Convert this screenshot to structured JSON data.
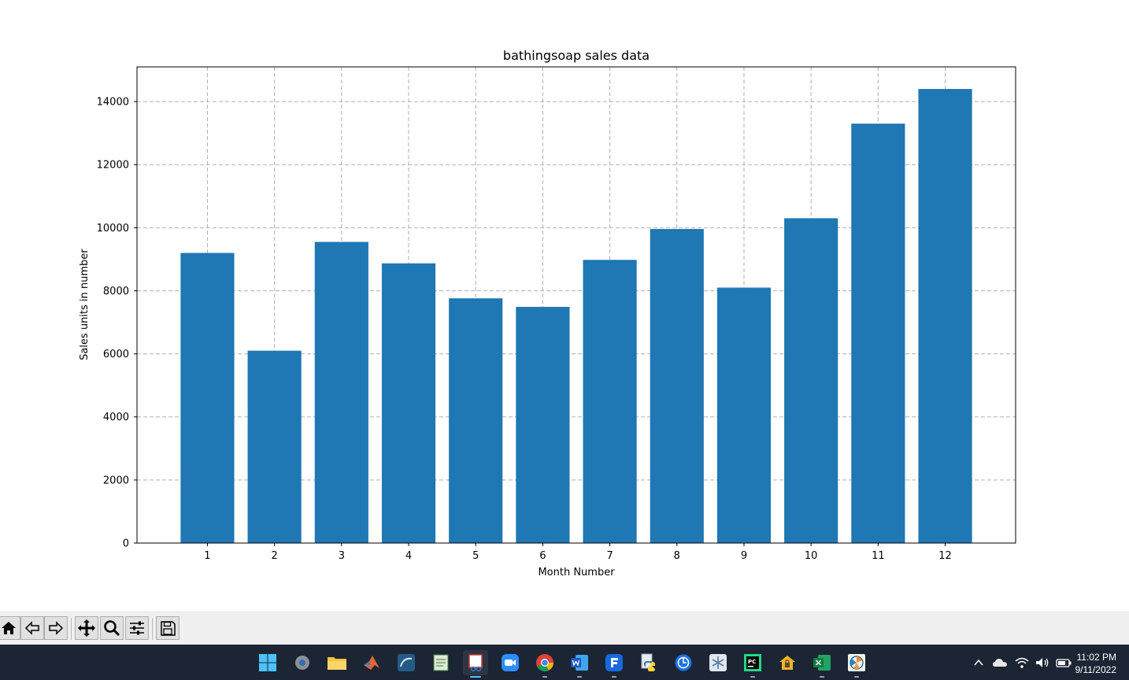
{
  "chart_data": {
    "type": "bar",
    "title": "bathingsoap sales data",
    "xlabel": "Month Number",
    "ylabel": "Sales units in number",
    "categories": [
      "1",
      "2",
      "3",
      "4",
      "5",
      "6",
      "7",
      "8",
      "9",
      "10",
      "11",
      "12"
    ],
    "values": [
      9200,
      6100,
      9550,
      8870,
      7760,
      7490,
      8980,
      9960,
      8100,
      10300,
      13300,
      14400
    ],
    "ylim": [
      0,
      15100
    ],
    "yticks": [
      0,
      2000,
      4000,
      6000,
      8000,
      10000,
      12000,
      14000
    ],
    "grid": true,
    "bar_color": "#1f77b4",
    "grid_color": "#b0b0b0"
  },
  "toolbar": {
    "buttons": [
      "home-icon",
      "back-icon",
      "forward-icon",
      "pan-icon",
      "zoom-icon",
      "configure-icon",
      "save-icon"
    ]
  },
  "taskbar": {
    "apps": [
      "start-icon",
      "settings-icon",
      "file-explorer-icon",
      "matlab-icon",
      "mysql-workbench-icon",
      "notepad-icon",
      "snipping-tool-icon",
      "zoom-app-icon",
      "chrome-icon",
      "word-icon",
      "app-f-icon",
      "python-icon",
      "globe-app-icon",
      "snowflake-app-icon",
      "pycharm-icon",
      "vpn-lock-icon",
      "excel-icon",
      "matplotlib-window-icon"
    ],
    "time": "11:02 PM",
    "date": "9/11/2022"
  }
}
